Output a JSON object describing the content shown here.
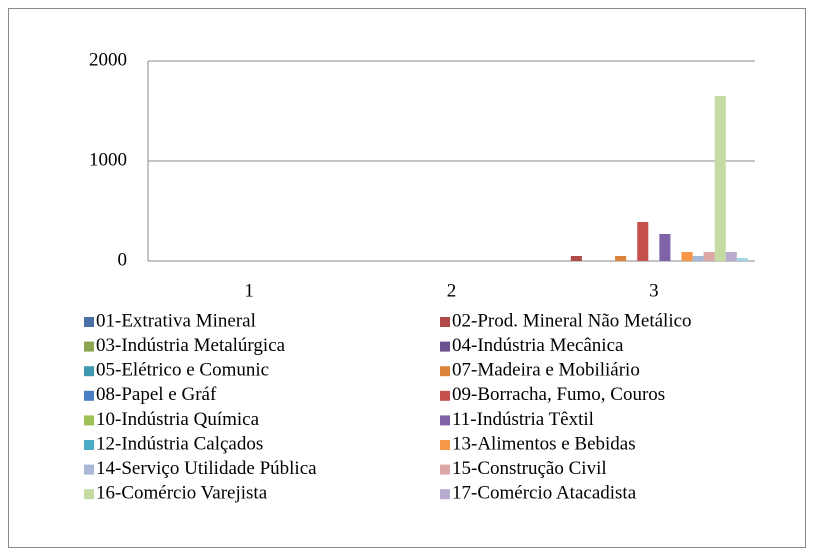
{
  "chart_data": {
    "type": "bar",
    "categories": [
      "1",
      "2",
      "3"
    ],
    "ylim": [
      0,
      2000
    ],
    "yticks": [
      0,
      1000,
      2000
    ],
    "grid": true,
    "series": [
      {
        "name": "01-Extrativa Mineral",
        "color": "#4a6fa5",
        "values": [
          0,
          0,
          0
        ]
      },
      {
        "name": "02-Prod. Mineral Não Metálico",
        "color": "#b04a46",
        "values": [
          0,
          0,
          50
        ]
      },
      {
        "name": "03-Indústria Metalúrgica",
        "color": "#8aa54e",
        "values": [
          0,
          0,
          0
        ]
      },
      {
        "name": "04-Indústria Mecânica",
        "color": "#6a5190",
        "values": [
          0,
          0,
          0
        ]
      },
      {
        "name": "05-Elétrico e Comunic",
        "color": "#3e98ad",
        "values": [
          0,
          0,
          0
        ]
      },
      {
        "name": "07-Madeira e Mobiliário",
        "color": "#d9833b",
        "values": [
          0,
          0,
          50
        ]
      },
      {
        "name": "08-Papel e Gráf",
        "color": "#4a7ec4",
        "values": [
          0,
          0,
          0
        ]
      },
      {
        "name": "09-Borracha, Fumo, Couros",
        "color": "#c5504c",
        "values": [
          0,
          0,
          390
        ]
      },
      {
        "name": "10-Indústria Química",
        "color": "#9cc154",
        "values": [
          0,
          0,
          0
        ]
      },
      {
        "name": "11-Indústria Têxtil",
        "color": "#7f62a8",
        "values": [
          0,
          0,
          270
        ]
      },
      {
        "name": "12-Indústria Calçados",
        "color": "#4bacc6",
        "values": [
          0,
          0,
          0
        ]
      },
      {
        "name": "13-Alimentos e Bebidas",
        "color": "#f79646",
        "values": [
          0,
          0,
          90
        ]
      },
      {
        "name": "14-Serviço Utilidade Pública",
        "color": "#a8b9d8",
        "values": [
          0,
          0,
          50
        ]
      },
      {
        "name": "15-Construção Civil",
        "color": "#dba7a6",
        "values": [
          0,
          0,
          90
        ]
      },
      {
        "name": "16-Comércio Varejista",
        "color": "#c4dca4",
        "values": [
          0,
          0,
          1650
        ]
      },
      {
        "name": "17-Comércio Atacadista",
        "color": "#b7acce",
        "values": [
          0,
          0,
          90
        ]
      },
      {
        "name": null,
        "color": "#a5d5e2",
        "values": [
          0,
          0,
          30
        ]
      }
    ]
  }
}
